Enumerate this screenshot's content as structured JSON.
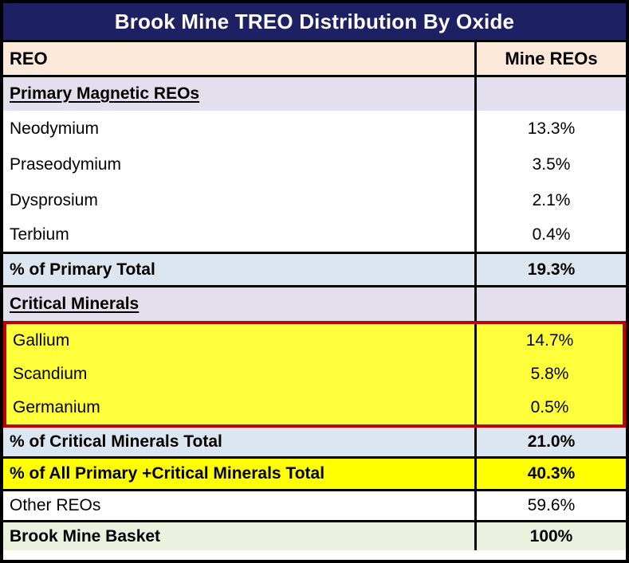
{
  "title": "Brook Mine TREO Distribution By Oxide",
  "header": {
    "col1": "REO",
    "col2": "Mine REOs"
  },
  "rows": [
    {
      "label": "Primary Magnetic REOs",
      "value": ""
    },
    {
      "label": "Neodymium",
      "value": "13.3%"
    },
    {
      "label": "Praseodymium",
      "value": "3.5%"
    },
    {
      "label": "Dysprosium",
      "value": "2.1%"
    },
    {
      "label": "Terbium",
      "value": "0.4%"
    },
    {
      "label": "% of Primary Total",
      "value": "19.3%"
    },
    {
      "label": "Critical Minerals",
      "value": ""
    },
    {
      "label": "Gallium",
      "value": "14.7%"
    },
    {
      "label": "Scandium",
      "value": "5.8%"
    },
    {
      "label": "Germanium",
      "value": "0.5%"
    },
    {
      "label": "% of Critical Minerals Total",
      "value": "21.0%"
    },
    {
      "label": "% of All Primary +Critical Minerals Total",
      "value": "40.3%"
    },
    {
      "label": "Other REOs",
      "value": "59.6%"
    },
    {
      "label": "Brook Mine Basket",
      "value": "100%"
    }
  ],
  "colors": {
    "title_bg": "#1E2064",
    "title_text": "#FFFFFF",
    "header_bg": "#FDE9D9",
    "section_bg": "#E4DFEC",
    "subtotal_bg": "#DCE6F1",
    "highlight_block_bg": "#FFFF3C",
    "highlight_block_border": "#C00000",
    "grand_total_bg": "#FFFF00",
    "basket_bg": "#EBF1DE",
    "grid_border": "#000000"
  },
  "chart_data": {
    "type": "table",
    "title": "Brook Mine TREO Distribution By Oxide",
    "columns": [
      "REO",
      "Mine REOs"
    ],
    "units": "percent of TREO",
    "rows": [
      {
        "reo": "Primary Magnetic REOs",
        "mine_reos_pct": null,
        "kind": "section-header"
      },
      {
        "reo": "Neodymium",
        "mine_reos_pct": 13.3,
        "kind": "data"
      },
      {
        "reo": "Praseodymium",
        "mine_reos_pct": 3.5,
        "kind": "data"
      },
      {
        "reo": "Dysprosium",
        "mine_reos_pct": 2.1,
        "kind": "data"
      },
      {
        "reo": "Terbium",
        "mine_reos_pct": 0.4,
        "kind": "data"
      },
      {
        "reo": "% of Primary Total",
        "mine_reos_pct": 19.3,
        "kind": "subtotal"
      },
      {
        "reo": "Critical Minerals",
        "mine_reos_pct": null,
        "kind": "section-header"
      },
      {
        "reo": "Gallium",
        "mine_reos_pct": 14.7,
        "kind": "data-highlighted"
      },
      {
        "reo": "Scandium",
        "mine_reos_pct": 5.8,
        "kind": "data-highlighted"
      },
      {
        "reo": "Germanium",
        "mine_reos_pct": 0.5,
        "kind": "data-highlighted"
      },
      {
        "reo": "% of Critical Minerals Total",
        "mine_reos_pct": 21.0,
        "kind": "subtotal"
      },
      {
        "reo": "% of All Primary +Critical Minerals Total",
        "mine_reos_pct": 40.3,
        "kind": "grand-subtotal"
      },
      {
        "reo": "Other REOs",
        "mine_reos_pct": 59.6,
        "kind": "data"
      },
      {
        "reo": "Brook Mine Basket",
        "mine_reos_pct": 100,
        "kind": "total"
      }
    ]
  }
}
